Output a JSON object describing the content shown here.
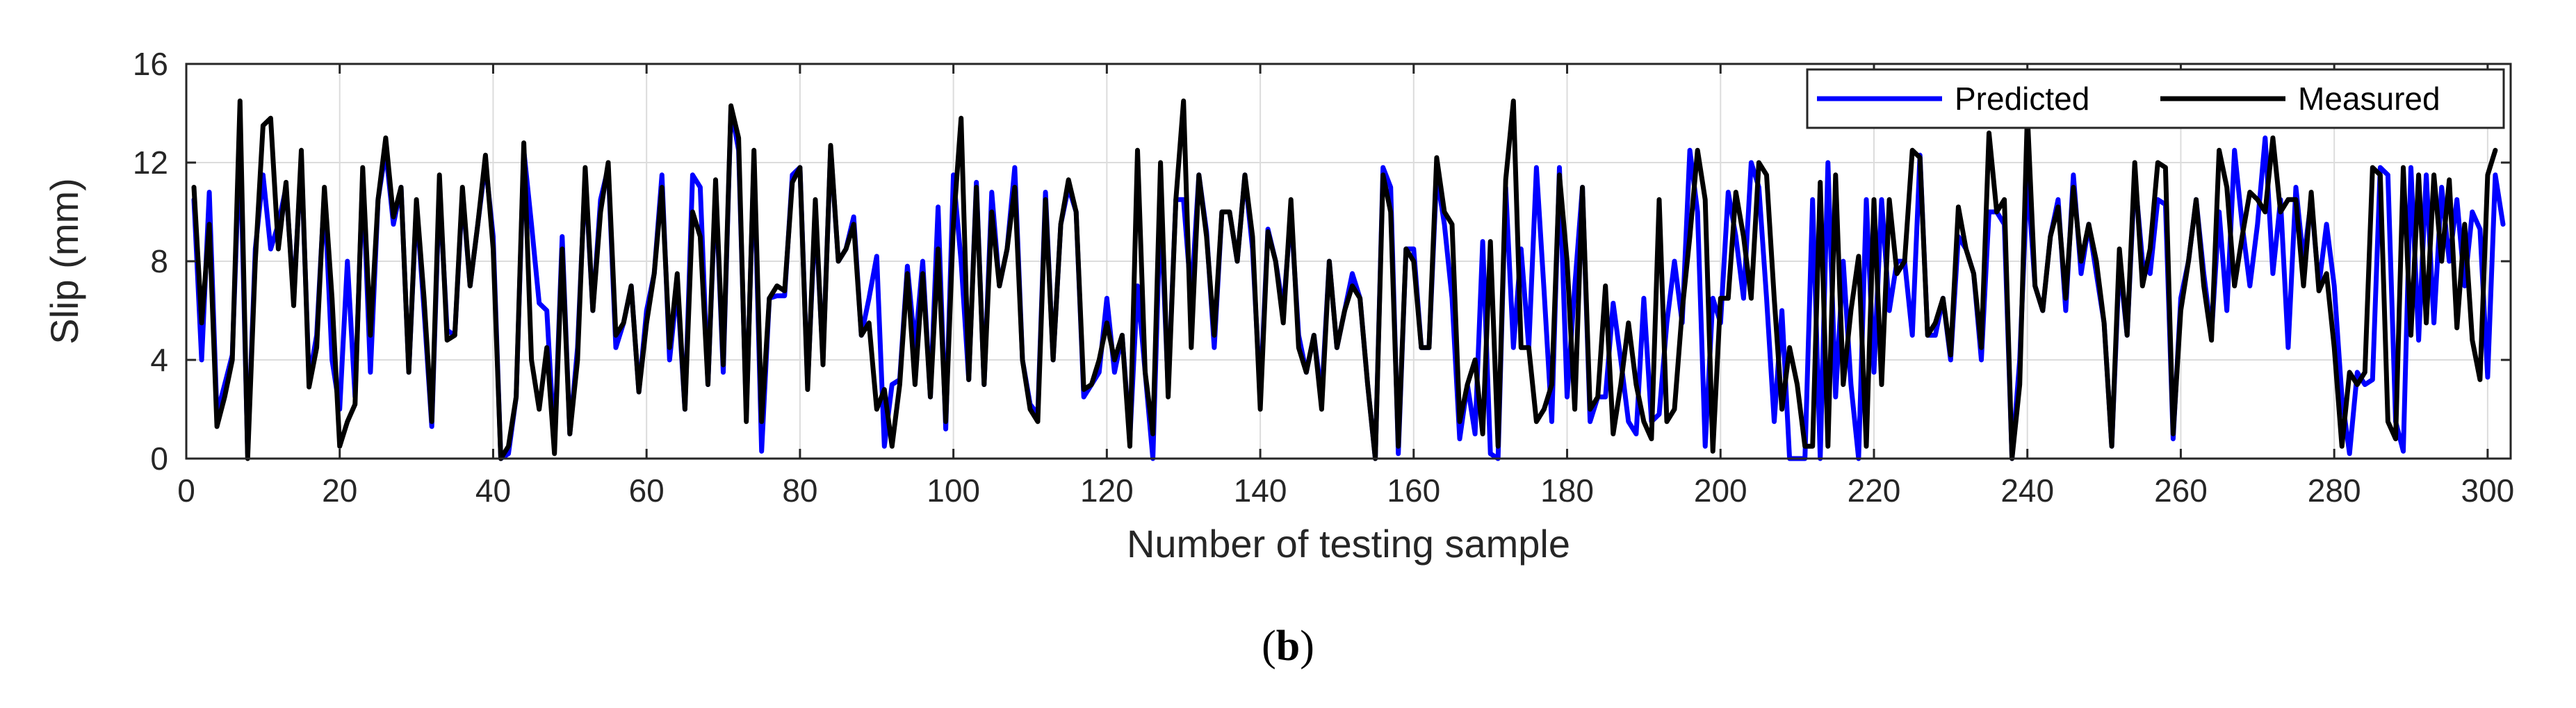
{
  "chart_data": {
    "type": "line",
    "title": "",
    "xlabel": "Number of testing sample",
    "ylabel": "Slip (mm)",
    "xlim": [
      0,
      303
    ],
    "ylim": [
      0,
      16
    ],
    "xticks": [
      0,
      20,
      40,
      60,
      80,
      100,
      120,
      140,
      160,
      180,
      200,
      220,
      240,
      260,
      280,
      300
    ],
    "yticks": [
      0,
      4,
      8,
      12,
      16
    ],
    "grid": true,
    "legend_position": "top-right",
    "series": [
      {
        "name": "Predicted",
        "color": "#0000ff",
        "x_start": 1,
        "values": [
          10.5,
          4.0,
          10.8,
          1.8,
          3.0,
          4.2,
          13.0,
          0.2,
          8.5,
          11.5,
          8.5,
          9.5,
          11.0,
          6.5,
          12.2,
          3.2,
          5.0,
          10.8,
          4.0,
          2.0,
          8.0,
          2.5,
          11.5,
          3.5,
          10.5,
          12.5,
          9.5,
          11.0,
          3.5,
          10.3,
          6.0,
          1.3,
          11.0,
          5.2,
          5.0,
          10.8,
          7.0,
          9.5,
          12.0,
          9.0,
          0.0,
          0.2,
          2.5,
          12.5,
          9.5,
          6.3,
          6.0,
          0.5,
          9.0,
          1.0,
          4.5,
          11.5,
          6.0,
          10.5,
          11.8,
          4.5,
          5.5,
          7.0,
          2.7,
          6.0,
          7.5,
          11.5,
          4.0,
          7.0,
          2.0,
          11.5,
          11.0,
          3.0,
          11.0,
          3.5,
          14.2,
          12.5,
          1.8,
          12.2,
          0.3,
          6.5,
          6.6,
          6.6,
          11.5,
          11.8,
          3.0,
          10.0,
          4.0,
          12.6,
          8.0,
          8.5,
          9.8,
          5.0,
          6.5,
          8.2,
          0.5,
          3.0,
          3.2,
          7.8,
          4.5,
          8.0,
          2.5,
          10.2,
          1.2,
          11.5,
          8.0,
          3.2,
          11.2,
          3.0,
          10.8,
          7.0,
          8.5,
          11.8,
          4.0,
          2.2,
          1.8,
          10.8,
          4.0,
          9.5,
          11.0,
          10.0,
          2.5,
          3.0,
          3.5,
          6.5,
          3.5,
          5.0,
          0.8,
          7.0,
          3.5,
          0.0,
          10.3,
          2.8,
          10.5,
          10.5,
          6.5,
          11.5,
          9.2,
          4.5,
          10.0,
          10.0,
          8.0,
          11.5,
          8.5,
          2.5,
          9.3,
          8.0,
          6.0,
          10.0,
          5.0,
          3.5,
          5.0,
          2.5,
          8.0,
          4.5,
          6.0,
          7.5,
          6.5,
          3.0,
          0.0,
          11.8,
          11.0,
          0.2,
          8.5,
          8.5,
          4.5,
          4.5,
          11.5,
          9.5,
          6.5,
          0.8,
          3.0,
          1.0,
          8.8,
          0.2,
          0.0,
          11.0,
          4.5,
          8.5,
          4.5,
          11.8,
          6.8,
          1.5,
          11.8,
          2.5,
          7.0,
          11.0,
          1.5,
          2.5,
          2.5,
          6.3,
          4.0,
          1.5,
          1.0,
          6.5,
          1.5,
          1.8,
          5.5,
          8.0,
          5.5,
          12.5,
          10.0,
          0.5,
          6.5,
          5.5,
          10.8,
          9.0,
          6.5,
          12.0,
          11.0,
          6.5,
          1.5,
          6.0,
          0.0,
          0.0,
          0.0,
          10.5,
          0.0,
          12.0,
          2.5,
          8.0,
          3.0,
          0.0,
          10.5,
          3.5,
          10.5,
          6.0,
          8.0,
          8.0,
          5.0,
          12.3,
          5.0,
          5.0,
          6.5,
          4.0,
          9.0,
          8.5,
          7.5,
          4.0,
          10.0,
          10.0,
          9.5,
          0.0,
          4.0,
          11.5,
          7.0,
          6.0,
          9.0,
          10.5,
          6.0,
          11.5,
          7.5,
          9.5,
          7.5,
          5.5,
          0.5,
          8.0,
          5.0,
          11.5,
          8.0,
          7.5,
          10.5,
          10.3,
          0.8,
          6.5,
          8.0,
          10.5,
          7.5,
          5.0,
          10.0,
          6.0,
          12.5,
          9.5,
          7.0,
          9.5,
          13.0,
          7.5,
          10.5,
          4.5,
          11.0,
          8.0,
          10.5,
          7.0,
          9.5,
          7.0,
          2.5,
          0.2,
          3.5,
          3.0,
          3.2,
          11.8,
          11.5,
          1.5,
          0.3,
          11.8,
          4.8,
          11.5,
          5.5,
          11.0,
          8.0,
          10.5,
          7.0,
          10.0,
          9.3,
          3.3,
          11.5,
          9.5
        ]
      },
      {
        "name": "Measured",
        "color": "#000000",
        "x_start": 1,
        "values": [
          11.0,
          5.5,
          9.5,
          1.3,
          2.5,
          4.0,
          14.5,
          0.0,
          8.0,
          13.5,
          13.8,
          8.5,
          11.2,
          6.2,
          12.5,
          2.9,
          4.5,
          11.0,
          6.5,
          0.5,
          1.5,
          2.2,
          11.8,
          5.0,
          10.5,
          13.0,
          9.8,
          11.0,
          3.5,
          10.5,
          6.5,
          1.5,
          11.5,
          4.8,
          5.0,
          11.0,
          7.0,
          9.5,
          12.3,
          8.5,
          0.0,
          0.5,
          2.5,
          12.8,
          4.0,
          2.0,
          4.5,
          0.2,
          8.5,
          1.0,
          4.0,
          11.8,
          6.0,
          10.0,
          12.0,
          5.0,
          5.5,
          7.0,
          2.7,
          5.5,
          7.5,
          11.0,
          4.5,
          7.5,
          2.0,
          10.0,
          9.0,
          3.0,
          11.3,
          3.8,
          14.3,
          13.0,
          1.5,
          12.5,
          1.5,
          6.5,
          7.0,
          6.8,
          11.2,
          11.8,
          2.8,
          10.5,
          3.8,
          12.7,
          8.0,
          8.5,
          9.5,
          5.0,
          5.5,
          2.0,
          2.8,
          0.5,
          3.0,
          7.5,
          3.0,
          7.5,
          2.5,
          8.5,
          1.5,
          9.5,
          13.8,
          3.2,
          11.0,
          3.0,
          10.0,
          7.0,
          8.5,
          11.0,
          4.0,
          2.0,
          1.5,
          10.5,
          4.0,
          9.5,
          11.3,
          10.0,
          2.8,
          3.0,
          4.0,
          5.5,
          4.0,
          5.0,
          0.5,
          12.5,
          3.5,
          1.0,
          12.0,
          2.5,
          10.5,
          14.5,
          4.5,
          11.5,
          9.0,
          5.0,
          10.0,
          10.0,
          8.0,
          11.5,
          9.0,
          2.0,
          9.2,
          8.0,
          5.5,
          10.5,
          4.5,
          3.5,
          5.0,
          2.0,
          8.0,
          4.5,
          6.0,
          7.0,
          6.5,
          3.0,
          0.0,
          11.5,
          10.0,
          0.5,
          8.5,
          8.0,
          4.5,
          4.5,
          12.2,
          10.0,
          9.5,
          1.5,
          3.0,
          4.0,
          1.0,
          8.8,
          0.5,
          11.3,
          14.5,
          4.5,
          4.5,
          1.5,
          2.0,
          3.0,
          11.5,
          8.0,
          2.0,
          11.0,
          2.0,
          2.5,
          7.0,
          1.0,
          3.0,
          5.5,
          3.0,
          1.5,
          0.8,
          10.5,
          1.5,
          2.0,
          6.0,
          9.0,
          12.5,
          10.5,
          0.3,
          6.5,
          6.5,
          10.8,
          9.0,
          6.5,
          12.0,
          11.5,
          6.5,
          2.0,
          4.5,
          3.0,
          0.5,
          0.5,
          11.2,
          0.5,
          11.5,
          3.0,
          6.0,
          8.2,
          0.5,
          10.5,
          3.0,
          10.5,
          7.5,
          8.0,
          12.5,
          12.2,
          5.0,
          5.5,
          6.5,
          4.2,
          10.2,
          8.5,
          7.5,
          4.5,
          13.2,
          10.0,
          10.5,
          0.0,
          3.0,
          14.0,
          7.0,
          6.0,
          9.0,
          10.2,
          6.5,
          11.0,
          8.0,
          9.5,
          8.0,
          5.5,
          0.5,
          8.5,
          5.0,
          12.0,
          7.0,
          8.5,
          12.0,
          11.8,
          1.0,
          6.0,
          8.0,
          10.5,
          7.0,
          4.8,
          12.5,
          11.0,
          7.0,
          9.0,
          10.8,
          10.5,
          10.0,
          13.0,
          10.0,
          10.5,
          10.5,
          7.0,
          10.8,
          6.8,
          7.5,
          4.5,
          0.5,
          3.5,
          3.0,
          3.5,
          11.8,
          11.5,
          1.5,
          0.8,
          11.8,
          5.0,
          11.5,
          5.5,
          11.5,
          8.0,
          11.3,
          5.3,
          9.5,
          4.8,
          3.2,
          11.5,
          12.5
        ]
      }
    ]
  },
  "caption": {
    "open": "(",
    "label": "b",
    "close": ")"
  }
}
